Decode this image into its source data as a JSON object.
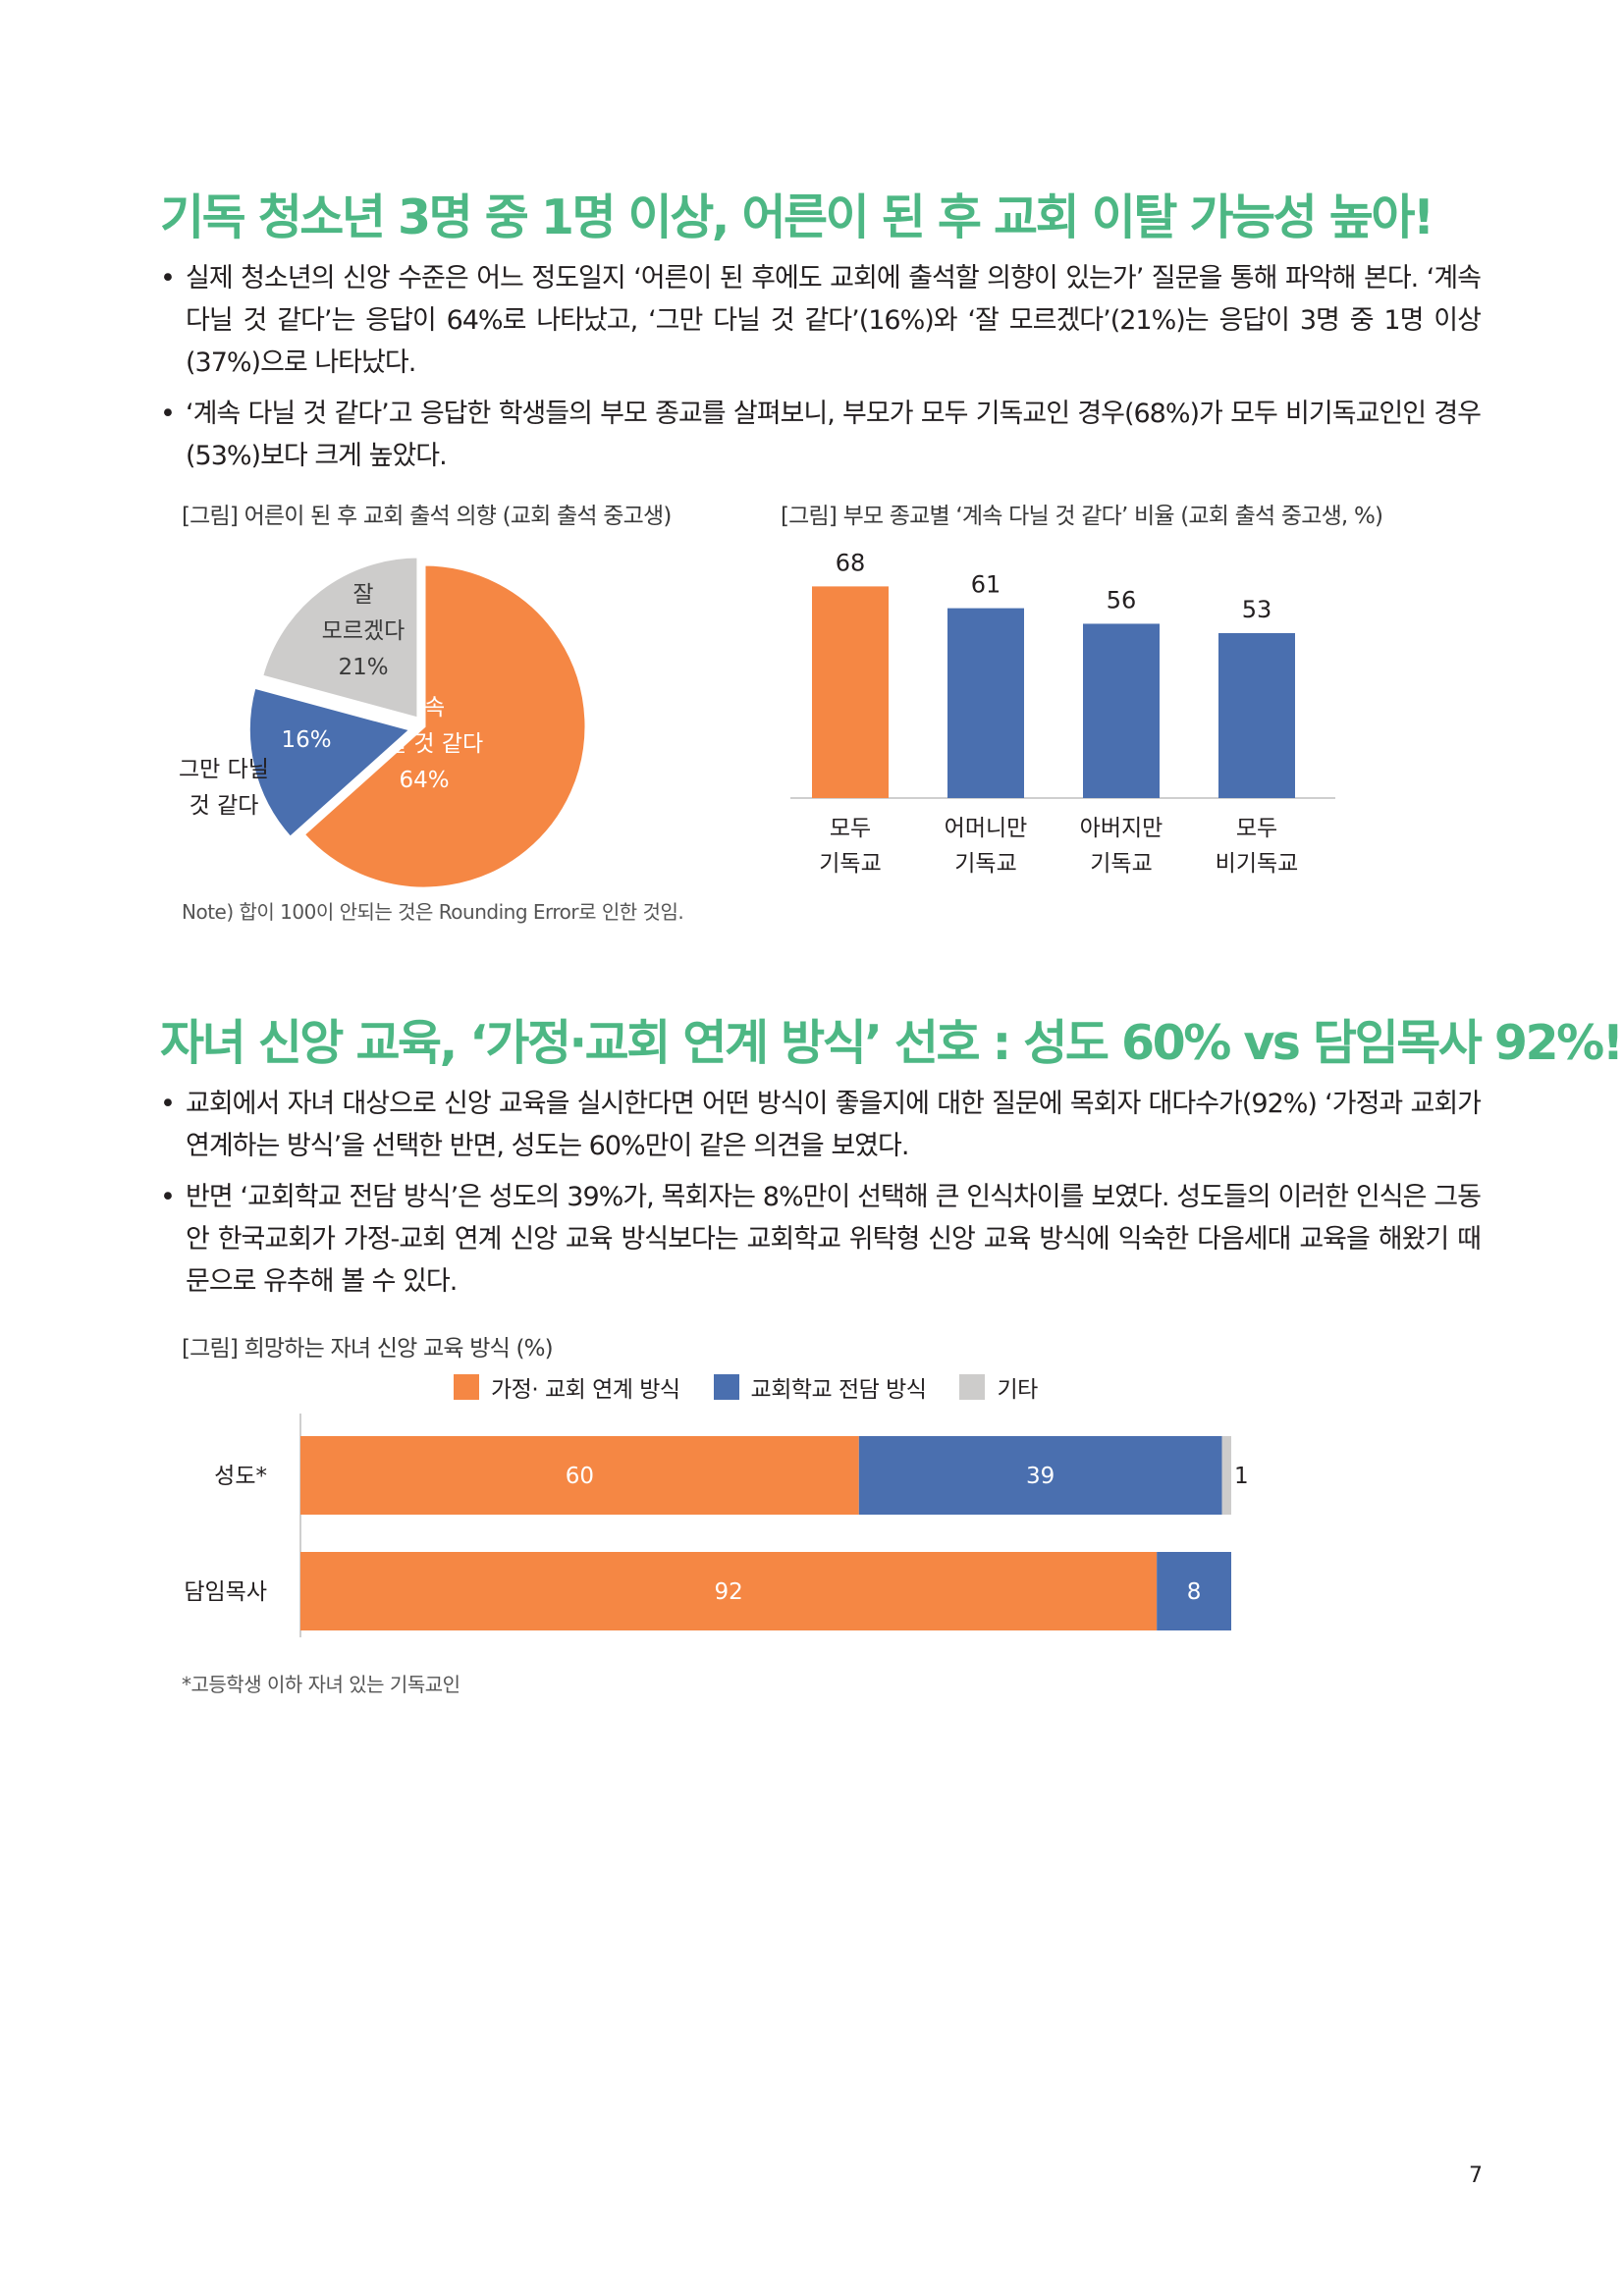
{
  "section1": {
    "title": "기독 청소년 3명 중 1명 이상, 어른이 된 후 교회 이탈 가능성 높아!",
    "bullets": [
      "실제 청소년의 신앙 수준은 어느 정도일지 ‘어른이 된 후에도 교회에 출석할 의향이 있는가’ 질문을 통해 파악해 본다. ‘계속 다닐 것 같다’는 응답이 64%로 나타났고, ‘그만 다닐 것 같다’(16%)와 ‘잘 모르겠다’(21%)는 응답이 3명 중 1명 이상(37%)으로 나타났다.",
      "‘계속 다닐 것 같다’고 응답한 학생들의 부모 종교를 살펴보니, 부모가 모두 기독교인 경우(68%)가 모두 비기독교인인 경우(53%)보다 크게 높았다."
    ],
    "pie_caption": "[그림] 어른이 된 후 교회 출석 의향 (교회 출석 중고생)",
    "bar_caption": "[그림] 부모 종교별 ‘계속 다닐 것 같다’ 비율 (교회 출석 중고생, %)",
    "note": "Note) 합이 100이 안되는 것은 Rounding Error로 인한 것임."
  },
  "section2": {
    "title": "자녀 신앙 교육, ‘가정·교회 연계 방식’ 선호 : 성도 60% vs 담임목사 92%!",
    "bullets": [
      "교회에서 자녀 대상으로 신앙 교육을 실시한다면 어떤 방식이 좋을지에 대한 질문에 목회자 대다수가(92%) ‘가정과 교회가 연계하는 방식’을 선택한 반면, 성도는 60%만이 같은 의견을 보였다.",
      "반면 ‘교회학교 전담 방식’은 성도의 39%가, 목회자는 8%만이 선택해 큰 인식차이를 보였다. 성도들의 이러한 인식은 그동안 한국교회가 가정-교회 연계 신앙 교육 방식보다는 교회학교 위탁형 신앙 교육 방식에 익숙한 다음세대 교육을 해왔기 때문으로 유추해 볼 수 있다."
    ],
    "chart_caption": "[그림] 희망하는 자녀 신앙 교육 방식 (%)",
    "footnote": "*고등학생 이하 자녀 있는 기독교인"
  },
  "page_number": "7",
  "colors": {
    "orange": "#f58744",
    "blue": "#4a6faf",
    "gray": "#cdcccb",
    "green": "#4db784"
  },
  "chart_data": [
    {
      "type": "pie",
      "slices": [
        {
          "label": [
            "계속",
            "다닐 것 같다"
          ],
          "value": 64,
          "value_label": "64%",
          "color": "#f58744"
        },
        {
          "label": [
            "그만 다닐",
            "것 같다"
          ],
          "value": 16,
          "value_label": "16%",
          "color": "#4a6faf"
        },
        {
          "label": [
            "잘",
            "모르겠다"
          ],
          "value": 21,
          "value_label": "21%",
          "color": "#cdcccb"
        }
      ]
    },
    {
      "type": "bar",
      "categories": [
        [
          "모두",
          "기독교"
        ],
        [
          "어머니만",
          "기독교"
        ],
        [
          "아버지만",
          "기독교"
        ],
        [
          "모두",
          "비기독교"
        ]
      ],
      "values": [
        68,
        61,
        56,
        53
      ],
      "colors": [
        "#f58744",
        "#4a6faf",
        "#4a6faf",
        "#4a6faf"
      ],
      "ylim": [
        0,
        75
      ]
    },
    {
      "type": "bar",
      "orientation": "horizontal-stacked",
      "categories": [
        "성도*",
        "담임목사"
      ],
      "series": [
        {
          "name": "가정· 교회 연계 방식",
          "values": [
            60,
            92
          ],
          "color": "#f58744"
        },
        {
          "name": "교회학교 전담 방식",
          "values": [
            39,
            8
          ],
          "color": "#4a6faf"
        },
        {
          "name": "기타",
          "values": [
            1,
            0
          ],
          "color": "#cdcccb"
        }
      ],
      "xlim": [
        0,
        100
      ]
    }
  ]
}
